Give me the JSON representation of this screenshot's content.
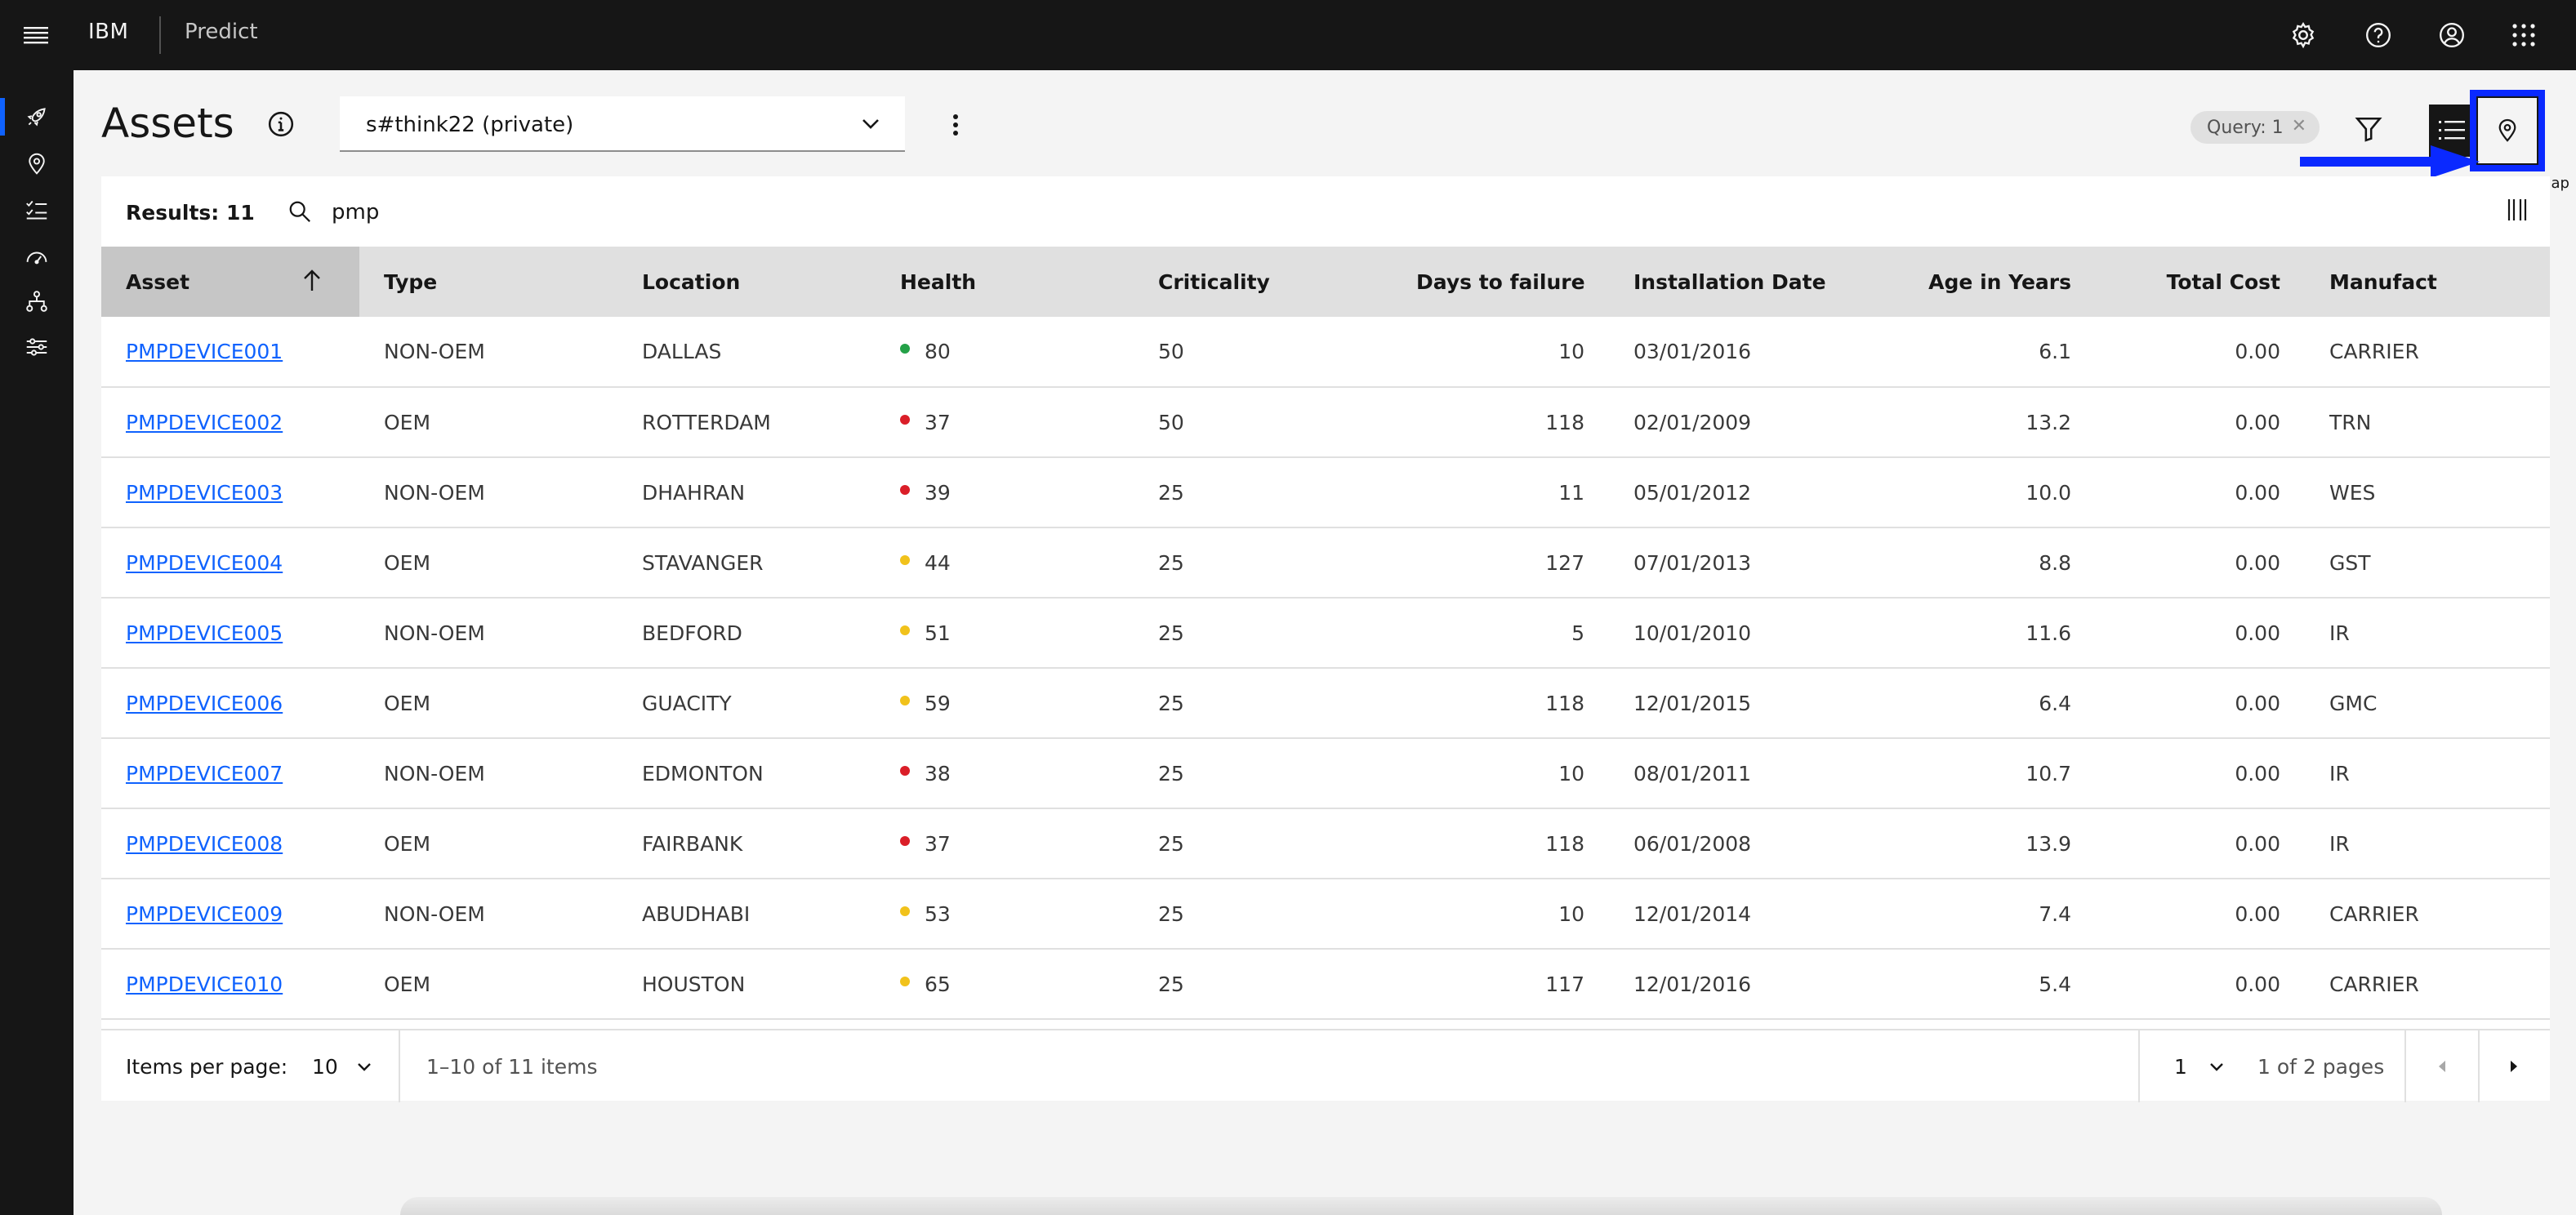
{
  "header": {
    "brand": "IBM",
    "product": "Predict"
  },
  "icons": {
    "menu": "hamburger-menu-icon",
    "settings": "gear-icon",
    "help": "help-icon",
    "user": "user-avatar-icon",
    "switcher": "app-switcher-icon"
  },
  "page": {
    "title": "Assets",
    "selector_value": "s#think22 (private)",
    "query_tag": "Query: 1",
    "map_tooltip": "Map"
  },
  "toolbar": {
    "results": "Results: 11",
    "search_value": "pmp"
  },
  "table": {
    "columns": [
      "Asset",
      "Type",
      "Location",
      "Health",
      "Criticality",
      "Days to failure",
      "Installation Date",
      "Age in Years",
      "Total Cost",
      "Manufact"
    ],
    "rows": [
      {
        "asset": "PMPDEVICE001",
        "type": "NON-OEM",
        "location": "DALLAS",
        "health": "80",
        "health_color": "#24a148",
        "criticality": "50",
        "days": "10",
        "install": "03/01/2016",
        "age": "6.1",
        "cost": "0.00",
        "manufacturer": "CARRIER"
      },
      {
        "asset": "PMPDEVICE002",
        "type": "OEM",
        "location": "ROTTERDAM",
        "health": "37",
        "health_color": "#da1e28",
        "criticality": "50",
        "days": "118",
        "install": "02/01/2009",
        "age": "13.2",
        "cost": "0.00",
        "manufacturer": "TRN"
      },
      {
        "asset": "PMPDEVICE003",
        "type": "NON-OEM",
        "location": "DHAHRAN",
        "health": "39",
        "health_color": "#da1e28",
        "criticality": "25",
        "days": "11",
        "install": "05/01/2012",
        "age": "10.0",
        "cost": "0.00",
        "manufacturer": "WES"
      },
      {
        "asset": "PMPDEVICE004",
        "type": "OEM",
        "location": "STAVANGER",
        "health": "44",
        "health_color": "#f1c21b",
        "criticality": "25",
        "days": "127",
        "install": "07/01/2013",
        "age": "8.8",
        "cost": "0.00",
        "manufacturer": "GST"
      },
      {
        "asset": "PMPDEVICE005",
        "type": "NON-OEM",
        "location": "BEDFORD",
        "health": "51",
        "health_color": "#f1c21b",
        "criticality": "25",
        "days": "5",
        "install": "10/01/2010",
        "age": "11.6",
        "cost": "0.00",
        "manufacturer": "IR"
      },
      {
        "asset": "PMPDEVICE006",
        "type": "OEM",
        "location": "GUACITY",
        "health": "59",
        "health_color": "#f1c21b",
        "criticality": "25",
        "days": "118",
        "install": "12/01/2015",
        "age": "6.4",
        "cost": "0.00",
        "manufacturer": "GMC"
      },
      {
        "asset": "PMPDEVICE007",
        "type": "NON-OEM",
        "location": "EDMONTON",
        "health": "38",
        "health_color": "#da1e28",
        "criticality": "25",
        "days": "10",
        "install": "08/01/2011",
        "age": "10.7",
        "cost": "0.00",
        "manufacturer": "IR"
      },
      {
        "asset": "PMPDEVICE008",
        "type": "OEM",
        "location": "FAIRBANK",
        "health": "37",
        "health_color": "#da1e28",
        "criticality": "25",
        "days": "118",
        "install": "06/01/2008",
        "age": "13.9",
        "cost": "0.00",
        "manufacturer": "IR"
      },
      {
        "asset": "PMPDEVICE009",
        "type": "NON-OEM",
        "location": "ABUDHABI",
        "health": "53",
        "health_color": "#f1c21b",
        "criticality": "25",
        "days": "10",
        "install": "12/01/2014",
        "age": "7.4",
        "cost": "0.00",
        "manufacturer": "CARRIER"
      },
      {
        "asset": "PMPDEVICE010",
        "type": "OEM",
        "location": "HOUSTON",
        "health": "65",
        "health_color": "#f1c21b",
        "criticality": "25",
        "days": "117",
        "install": "12/01/2016",
        "age": "5.4",
        "cost": "0.00",
        "manufacturer": "CARRIER"
      }
    ]
  },
  "pagination": {
    "items_per_page_label": "Items per page:",
    "items_per_page": "10",
    "range": "1–10 of 11 items",
    "page": "1",
    "pages": "1 of 2 pages"
  },
  "colors": {
    "accent": "#0f62fe",
    "highlight": "#0a29ff",
    "health_good": "#24a148",
    "health_warn": "#f1c21b",
    "health_bad": "#da1e28"
  }
}
